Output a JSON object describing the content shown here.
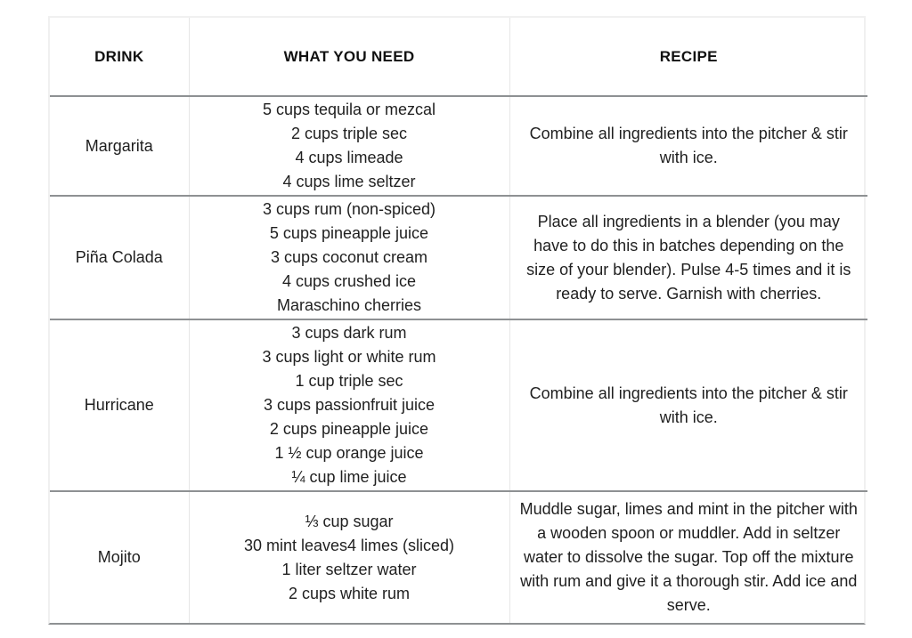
{
  "table": {
    "headers": [
      {
        "label": "DRINK"
      },
      {
        "label": "WHAT YOU NEED"
      },
      {
        "label": "RECIPE"
      }
    ],
    "rows": [
      {
        "drink": "Margarita",
        "ingredients": [
          "5 cups tequila or mezcal",
          "2 cups triple sec",
          "4 cups limeade",
          "4 cups lime seltzer"
        ],
        "recipe": "Combine all ingredients into the pitcher & stir with ice."
      },
      {
        "drink": "Piña Colada",
        "ingredients": [
          "3 cups rum (non-spiced)",
          "5 cups pineapple juice",
          "3 cups coconut cream",
          "4 cups crushed ice",
          "Maraschino cherries"
        ],
        "recipe": "Place all ingredients in a blender (you may have to do this in batches depending on the size of your blender). Pulse 4-5 times and it is ready to serve. Garnish with cherries."
      },
      {
        "drink": "Hurricane",
        "ingredients": [
          "3 cups dark rum",
          "3 cups light or white rum",
          "1 cup triple sec",
          "3 cups passionfruit juice",
          "2 cups pineapple juice",
          "1 ½ cup orange juice",
          "¼ cup lime juice"
        ],
        "recipe": "Combine all ingredients into the pitcher & stir with ice."
      },
      {
        "drink": "Mojito",
        "ingredients": [
          "⅓ cup sugar",
          "30 mint leaves4 limes (sliced)",
          "1 liter seltzer water",
          "2 cups white rum"
        ],
        "recipe": "Muddle sugar, limes and mint in the pitcher with a wooden spoon or muddler. Add in seltzer water to dissolve the sugar. Top off the mixture with rum and give it a thorough stir. Add ice and serve."
      }
    ],
    "colors": {
      "row_border": "#8e9193",
      "outer_border": "#f0f0f0",
      "column_border": "#e6e6e6",
      "text": "#1f1f1f",
      "background": "#ffffff"
    }
  }
}
